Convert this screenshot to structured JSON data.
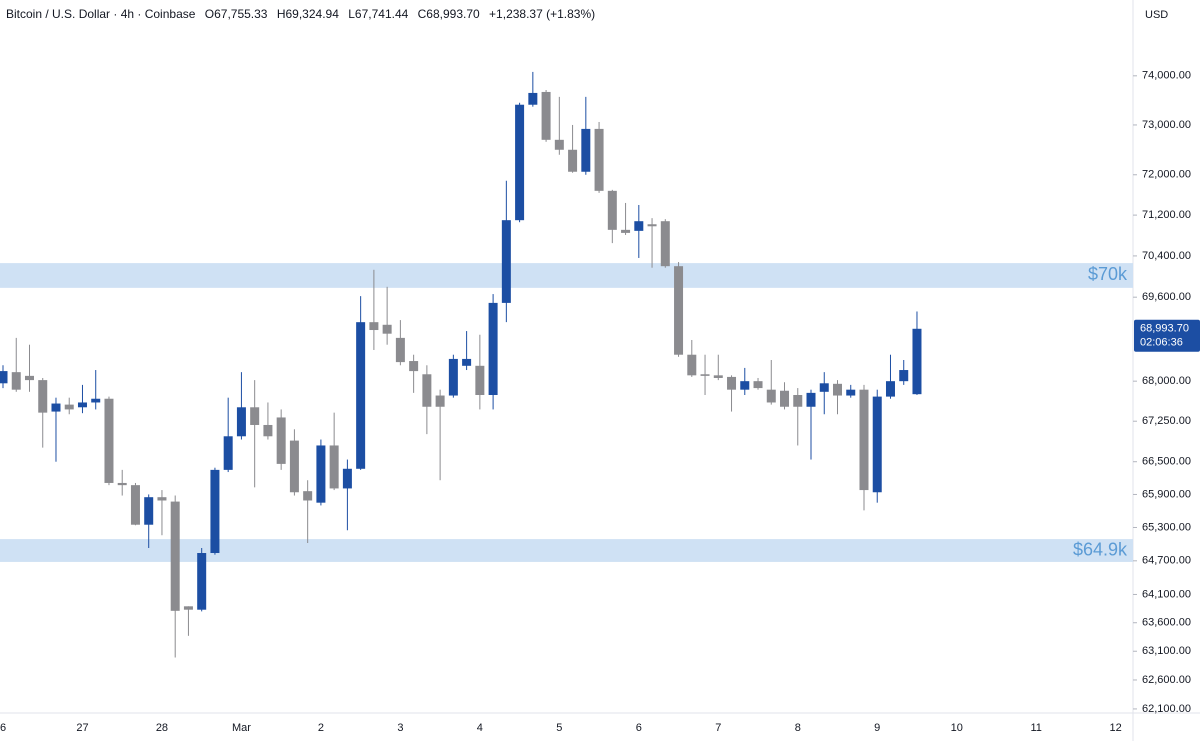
{
  "header": {
    "title": "Bitcoin / U.S. Dollar · 4h · Coinbase",
    "ohlc": [
      "O67,755.33",
      "H69,324.94",
      "L67,741.44",
      "C68,993.70"
    ],
    "change": "+1,238.37 (+1.83%)",
    "currency": "USD"
  },
  "chart_data": {
    "type": "candlestick",
    "log_scale": true,
    "grid": false,
    "up_color": "#1c4ea3",
    "down_color": "#8b8b8f",
    "categories": [
      "6",
      null,
      null,
      null,
      null,
      null,
      "27",
      null,
      null,
      null,
      null,
      null,
      "28",
      null,
      null,
      null,
      null,
      null,
      "Mar",
      null,
      null,
      null,
      null,
      null,
      "2",
      null,
      null,
      null,
      null,
      null,
      "3",
      null,
      null,
      null,
      null,
      null,
      "4",
      null,
      null,
      null,
      null,
      null,
      "5",
      null,
      null,
      null,
      null,
      null,
      "6",
      null,
      null,
      null,
      null,
      null,
      "7",
      null,
      null,
      null,
      null,
      null,
      "8",
      null,
      null,
      null,
      null,
      null,
      "9",
      null,
      null,
      null,
      null,
      null,
      "10",
      null,
      null,
      null,
      null,
      null,
      "11",
      null,
      null,
      null,
      null,
      null,
      "12",
      null
    ],
    "open": [
      67960,
      68170,
      68100,
      68020,
      67430,
      67560,
      67510,
      67600,
      67670,
      66110,
      66070,
      65350,
      65850,
      65770,
      63890,
      63830,
      64840,
      66350,
      66970,
      67510,
      67180,
      67320,
      66890,
      65960,
      65750,
      66800,
      66010,
      66370,
      69120,
      69070,
      68820,
      68380,
      68130,
      67730,
      67730,
      68290,
      68290,
      67740,
      69490,
      71100,
      73410,
      73670,
      72700,
      72500,
      72060,
      72920,
      71680,
      70910,
      70890,
      71020,
      71080,
      70200,
      68500,
      68130,
      68110,
      68080,
      67840,
      68000,
      67840,
      67820,
      67740,
      67520,
      67800,
      67950,
      67730,
      67840,
      65940,
      67710,
      68000,
      67755.33,
      null,
      null,
      null,
      null,
      null,
      null,
      null,
      null,
      null,
      null,
      null,
      null,
      null,
      null,
      null,
      null
    ],
    "high": [
      68300,
      68820,
      68690,
      68060,
      67690,
      67690,
      67930,
      68210,
      67710,
      66350,
      66110,
      65900,
      65980,
      65880,
      63890,
      64930,
      66390,
      67690,
      68170,
      68020,
      67600,
      67470,
      67100,
      66160,
      66910,
      67410,
      66540,
      69620,
      70130,
      69800,
      69160,
      68500,
      68300,
      67840,
      68500,
      68950,
      68880,
      69660,
      71880,
      73450,
      74080,
      73710,
      73570,
      73000,
      73570,
      73060,
      71700,
      71440,
      71400,
      71140,
      71120,
      70280,
      68780,
      68500,
      68500,
      68110,
      68250,
      68060,
      68400,
      67980,
      67870,
      67840,
      68170,
      68020,
      67930,
      67930,
      67840,
      68500,
      68400,
      69324.94,
      null,
      null,
      null,
      null,
      null,
      null,
      null,
      null,
      null,
      null,
      null,
      null,
      null,
      null,
      null,
      null
    ],
    "low": [
      67870,
      67800,
      67800,
      66760,
      66500,
      67380,
      67400,
      67470,
      66070,
      65880,
      65340,
      64930,
      65160,
      62990,
      63370,
      63800,
      64810,
      66310,
      66910,
      66030,
      66910,
      66350,
      65880,
      65020,
      65700,
      65980,
      65250,
      66350,
      68590,
      68690,
      68300,
      67780,
      67010,
      66160,
      67690,
      68210,
      67470,
      67470,
      69120,
      71060,
      73370,
      72660,
      72400,
      72040,
      72000,
      71640,
      70650,
      70810,
      70360,
      70170,
      70170,
      68460,
      68080,
      67740,
      68020,
      67430,
      67740,
      67840,
      67560,
      67470,
      66800,
      66540,
      67380,
      67380,
      67690,
      65610,
      65750,
      67670,
      67930,
      67741.44,
      null,
      null,
      null,
      null,
      null,
      null,
      null,
      null,
      null,
      null,
      null,
      null,
      null,
      null,
      null,
      null
    ],
    "close": [
      68190,
      67840,
      68020,
      67410,
      67580,
      67470,
      67600,
      67670,
      66110,
      66070,
      65350,
      65850,
      65790,
      63810,
      63830,
      64840,
      66350,
      66970,
      67510,
      67180,
      66970,
      66460,
      65940,
      65790,
      66800,
      66010,
      66370,
      69120,
      68970,
      68900,
      68360,
      68190,
      67520,
      67520,
      68420,
      68420,
      67740,
      69490,
      71100,
      73410,
      73650,
      72700,
      72500,
      72060,
      72920,
      71680,
      70910,
      70850,
      71080,
      70980,
      70200,
      68500,
      68110,
      68100,
      68060,
      67840,
      68000,
      67870,
      67600,
      67520,
      67520,
      67780,
      67960,
      67730,
      67840,
      65980,
      67710,
      68000,
      68210,
      68993.7,
      null,
      null,
      null,
      null,
      null,
      null,
      null,
      null,
      null,
      null,
      null,
      null,
      null,
      null,
      null,
      null
    ],
    "ylim": [
      62030,
      75570
    ],
    "yticks": [
      {
        "value": 74000,
        "label": "74,000.00"
      },
      {
        "value": 73000,
        "label": "73,000.00"
      },
      {
        "value": 72000,
        "label": "72,000.00"
      },
      {
        "value": 71200,
        "label": "71,200.00"
      },
      {
        "value": 70400,
        "label": "70,400.00"
      },
      {
        "value": 69600,
        "label": "69,600.00"
      },
      {
        "value": 68000,
        "label": "68,000.00"
      },
      {
        "value": 67250,
        "label": "67,250.00"
      },
      {
        "value": 66500,
        "label": "66,500.00"
      },
      {
        "value": 65900,
        "label": "65,900.00"
      },
      {
        "value": 65300,
        "label": "65,300.00"
      },
      {
        "value": 64700,
        "label": "64,700.00"
      },
      {
        "value": 64100,
        "label": "64,100.00"
      },
      {
        "value": 63600,
        "label": "63,600.00"
      },
      {
        "value": 63100,
        "label": "63,100.00"
      },
      {
        "value": 62600,
        "label": "62,600.00"
      },
      {
        "value": 62100,
        "label": "62,100.00"
      }
    ],
    "zones": [
      {
        "label": "$70k",
        "low": 69780,
        "high": 70260,
        "color": "#cfe1f4",
        "label_color": "#5b9bd5"
      },
      {
        "label": "$64.9k",
        "low": 64680,
        "high": 65090,
        "color": "#cfe1f4",
        "label_color": "#5b9bd5"
      }
    ],
    "last_price": {
      "value": 68993.7,
      "label": "68,993.70",
      "countdown": "02:06:36",
      "color": "#1c4ea3"
    }
  }
}
